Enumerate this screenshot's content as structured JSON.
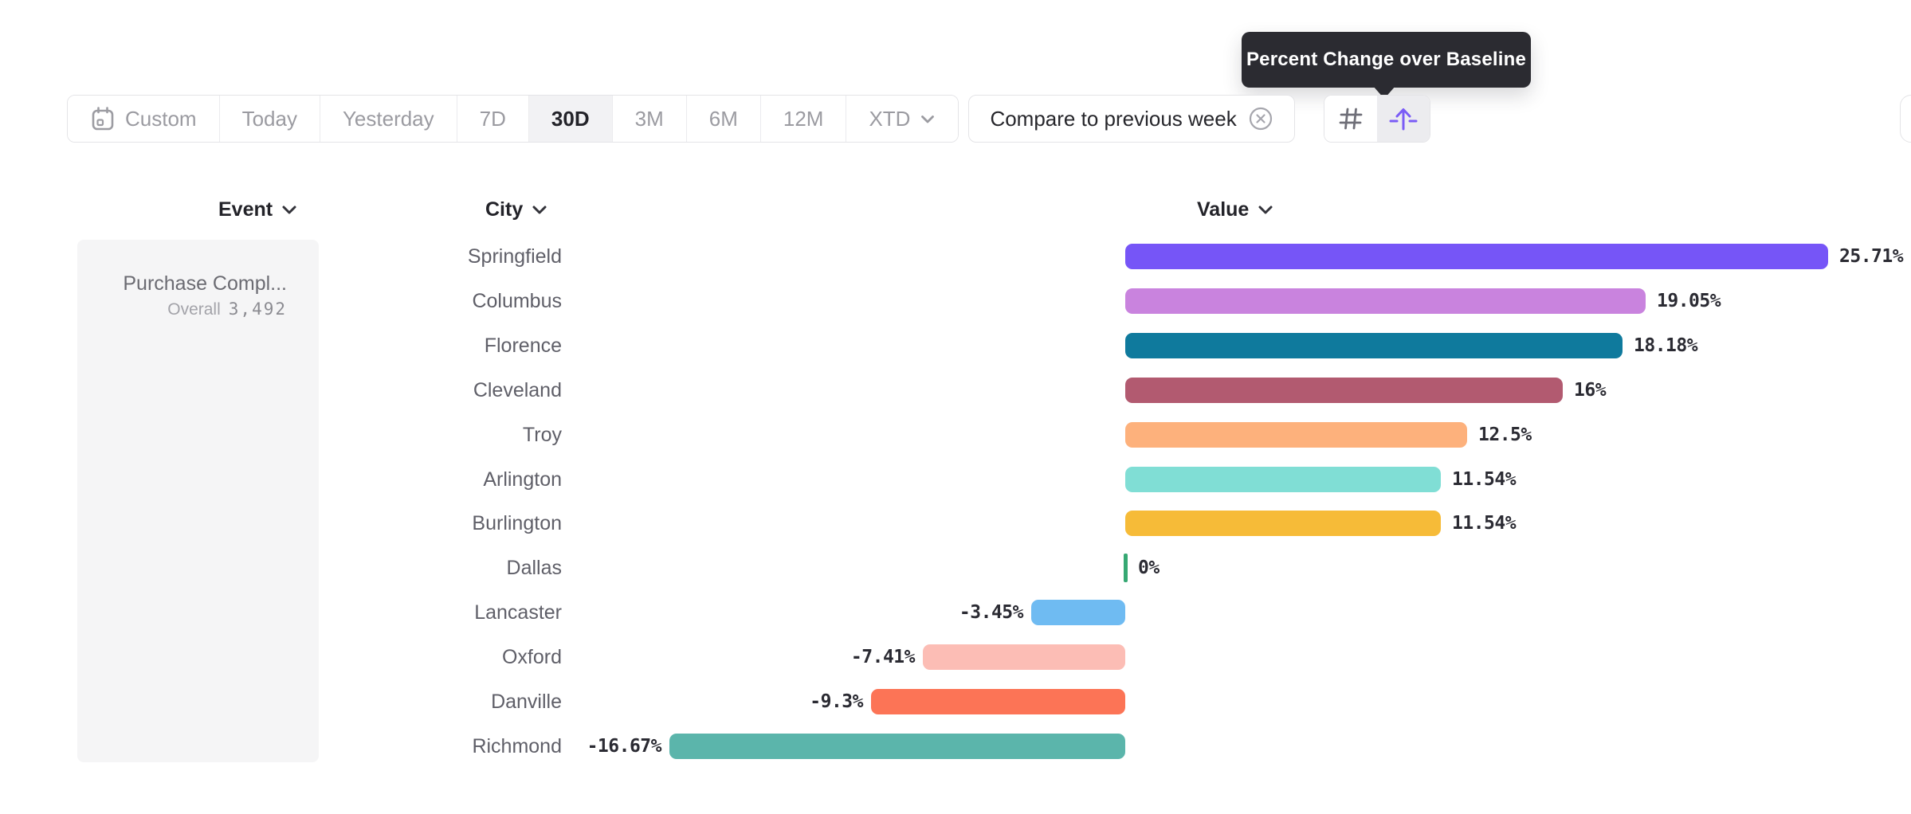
{
  "toolbar": {
    "date_ranges": [
      {
        "label": "Custom",
        "icon": "calendar",
        "selected": false
      },
      {
        "label": "Today",
        "selected": false
      },
      {
        "label": "Yesterday",
        "selected": false
      },
      {
        "label": "7D",
        "selected": false
      },
      {
        "label": "30D",
        "selected": true
      },
      {
        "label": "3M",
        "selected": false
      },
      {
        "label": "6M",
        "selected": false
      },
      {
        "label": "12M",
        "selected": false
      },
      {
        "label": "XTD",
        "chevron": true,
        "selected": false
      }
    ],
    "compare_pill": {
      "label": "Compare to previous week"
    },
    "view_toggle": [
      {
        "icon": "hash-grid-icon",
        "selected": false
      },
      {
        "icon": "arrow-up-baseline-icon",
        "selected": true
      }
    ]
  },
  "tooltip": {
    "text": "Percent Change over Baseline"
  },
  "columns": {
    "event": "Event",
    "city": "City",
    "value": "Value"
  },
  "event_panel": {
    "event_name": "Purchase Compl...",
    "overall_label": "Overall",
    "overall_value": "3,492"
  },
  "chart_data": {
    "type": "bar",
    "orientation": "horizontal",
    "title": "",
    "xlabel": "Value",
    "unit": "%",
    "zero_baseline": true,
    "xlim": [
      -16.67,
      25.71
    ],
    "categories": [
      "Springfield",
      "Columbus",
      "Florence",
      "Cleveland",
      "Troy",
      "Arlington",
      "Burlington",
      "Dallas",
      "Lancaster",
      "Oxford",
      "Danville",
      "Richmond"
    ],
    "values": [
      25.71,
      19.05,
      18.18,
      16,
      12.5,
      11.54,
      11.54,
      0,
      -3.45,
      -7.41,
      -9.3,
      -16.67
    ],
    "value_labels": [
      "25.71%",
      "19.05%",
      "18.18%",
      "16%",
      "12.5%",
      "11.54%",
      "11.54%",
      "0%",
      "-3.45%",
      "-7.41%",
      "-9.3%",
      "-16.67%"
    ],
    "colors": [
      "#7655f7",
      "#c983de",
      "#0f7a9d",
      "#b25a70",
      "#fdb17c",
      "#80ded5",
      "#f6bb38",
      "#36a873",
      "#6fbbf2",
      "#fcbdb5",
      "#fc7456",
      "#5bb5ab"
    ]
  },
  "colors": {
    "accent_purple": "#7a5cf6",
    "tooltip_bg": "#2b2b31",
    "panel_bg": "#f5f5f6",
    "border": "#e4e4e7",
    "zero_tick_green": "#36a873",
    "value_text": "#2b2b33",
    "muted_text": "#9b9ba1"
  }
}
